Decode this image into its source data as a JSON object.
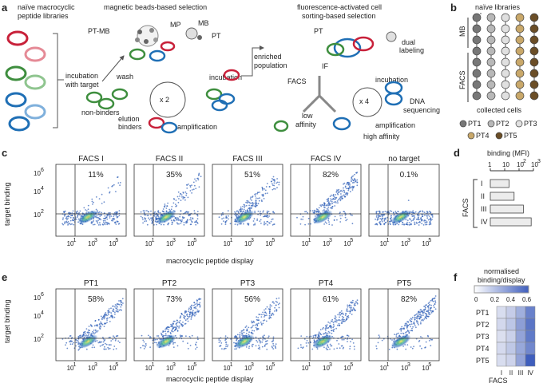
{
  "colors": {
    "red": "#c8213a",
    "green": "#3e8e3e",
    "blue": "#1f6fb5",
    "tan": "#a88a55",
    "pt1": "#777777",
    "pt2": "#b8b8b8",
    "pt3": "#e0e0e0",
    "pt4": "#c9a86a",
    "pt5": "#6b4e27",
    "heat_low": "#e6e8f3",
    "heat_high": "#3f5ebd"
  },
  "panel_a": {
    "label": "a",
    "library_title": "naïve macrocyclic\npeptide libraries",
    "incubation": "incubation\nwith target",
    "mb_title": "magnetic beads-based selection",
    "pt_mb": "PT-MB",
    "mp": "MP",
    "mb": "MB",
    "pt": "PT",
    "wash": "wash",
    "loop_mb": "x 2",
    "incubation_mb": "incubation",
    "non_binders": "non-binders",
    "elution": "elution",
    "binders": "binders",
    "amplification_mb": "amplification",
    "enriched": "enriched\npopulation",
    "facs_title": "fluorescence-activated cell\nsorting-based selection",
    "pt_facs": "PT",
    "dual": "dual\nlabeling",
    "if": "IF",
    "facs": "FACS",
    "incubation_facs": "incubation",
    "loop_facs": "x 4",
    "dna": "DNA\nsequencing",
    "amplification_facs": "amplification",
    "low": "low\naffinity",
    "high": "high affinity"
  },
  "panel_b": {
    "label": "b",
    "title": "naïve libraries",
    "mb_label": "MB",
    "facs_label": "FACS",
    "collected": "collected cells",
    "legend": [
      "PT1",
      "PT2",
      "PT3",
      "PT4",
      "PT5"
    ]
  },
  "panel_c": {
    "label": "c",
    "titles": [
      "FACS I",
      "FACS II",
      "FACS III",
      "FACS IV",
      "no target"
    ],
    "percents": [
      "11%",
      "35%",
      "51%",
      "82%",
      "0.1%"
    ],
    "ylabel": "target binding",
    "xlabel": "macrocyclic peptide display",
    "yticks": [
      "10",
      "10",
      "10"
    ],
    "yexp": [
      "6",
      "4",
      "2"
    ],
    "xticks": [
      "10",
      "10",
      "10"
    ],
    "xexp": [
      "1",
      "3",
      "5"
    ]
  },
  "panel_d": {
    "label": "d",
    "title": "binding (MFI)",
    "axis_ticks": [
      "1",
      "10",
      "10",
      "10"
    ],
    "axis_exp": [
      "",
      "",
      "2",
      "3"
    ],
    "group": "FACS",
    "rows": [
      "I",
      "II",
      "III",
      "IV"
    ]
  },
  "panel_e": {
    "label": "e",
    "titles": [
      "PT1",
      "PT2",
      "PT3",
      "PT4",
      "PT5"
    ],
    "percents": [
      "58%",
      "73%",
      "56%",
      "61%",
      "82%"
    ],
    "ylabel": "target binding",
    "xlabel": "macrocyclic peptide display"
  },
  "panel_f": {
    "label": "f",
    "title": "normalised\nbinding/display",
    "scale": [
      "0",
      "0.2",
      "0.4",
      "0.6"
    ],
    "rows": [
      "PT1",
      "PT2",
      "PT3",
      "PT4",
      "PT5"
    ],
    "cols": [
      "I",
      "II",
      "III",
      "IV"
    ],
    "group": "FACS"
  },
  "chart_data": [
    {
      "type": "bar",
      "title": "binding (MFI)",
      "categories": [
        "I",
        "II",
        "III",
        "IV"
      ],
      "values": [
        20,
        45,
        200,
        700
      ],
      "xscale": "log",
      "xlim": [
        1,
        1000
      ],
      "ylabel": "FACS"
    },
    {
      "type": "heatmap",
      "title": "normalised binding/display",
      "rows": [
        "PT1",
        "PT2",
        "PT3",
        "PT4",
        "PT5"
      ],
      "cols": [
        "I",
        "II",
        "III",
        "IV"
      ],
      "values": [
        [
          0.05,
          0.12,
          0.25,
          0.45
        ],
        [
          0.07,
          0.15,
          0.32,
          0.5
        ],
        [
          0.04,
          0.1,
          0.3,
          0.48
        ],
        [
          0.06,
          0.14,
          0.28,
          0.42
        ],
        [
          0.05,
          0.09,
          0.3,
          0.62
        ]
      ],
      "scale_range": [
        0,
        0.6
      ]
    }
  ]
}
